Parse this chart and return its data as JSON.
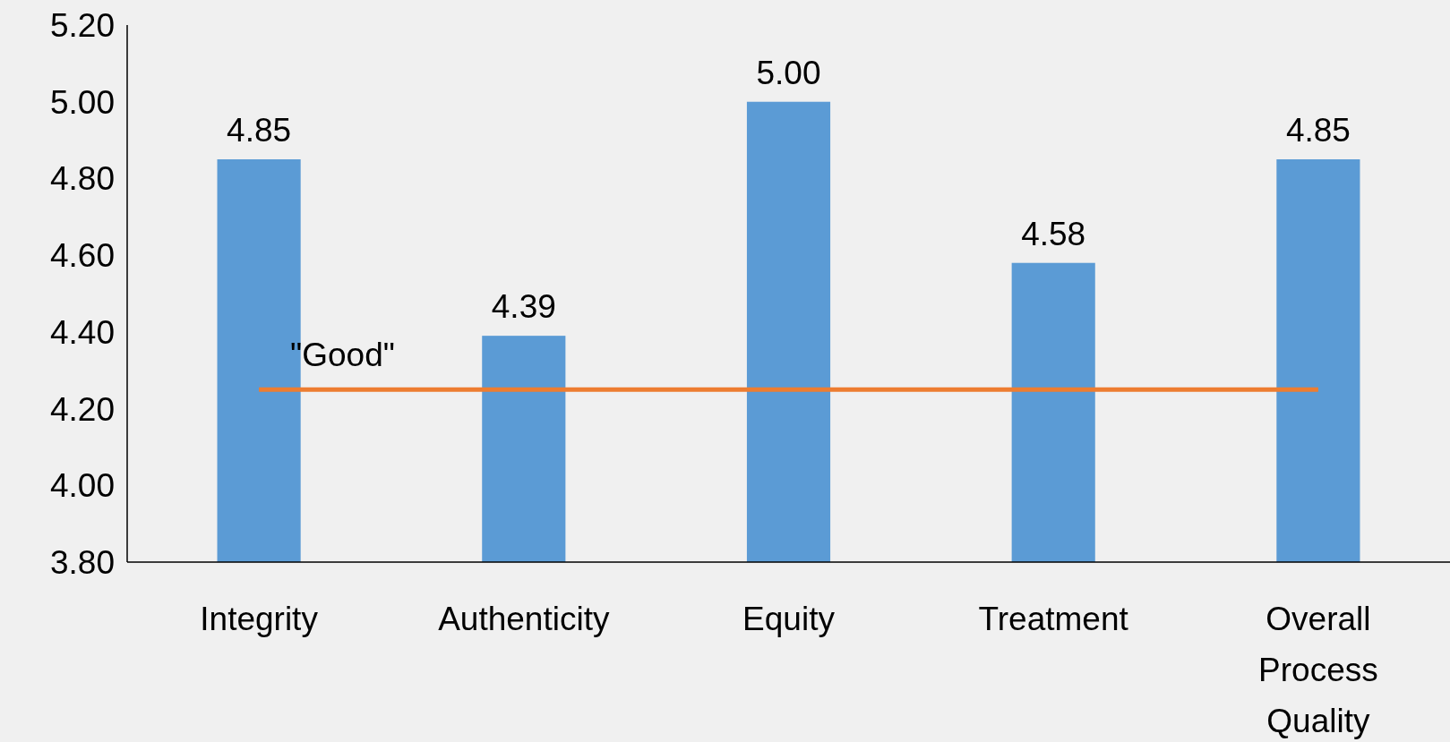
{
  "chart_data": {
    "type": "bar",
    "categories": [
      "Integrity",
      "Authenticity",
      "Equity",
      "Treatment",
      "Overall Process Quality"
    ],
    "values": [
      4.85,
      4.39,
      5.0,
      4.58,
      4.85
    ],
    "color": "#5b9bd5",
    "value_labels": [
      "4.85",
      "4.39",
      "5.00",
      "4.58",
      "4.85"
    ],
    "ylim": [
      3.8,
      5.2
    ],
    "yticks": [
      {
        "value": 3.8,
        "label": "3.80"
      },
      {
        "value": 4.0,
        "label": "4.00"
      },
      {
        "value": 4.2,
        "label": "4.20"
      },
      {
        "value": 4.4,
        "label": "4.40"
      },
      {
        "value": 4.6,
        "label": "4.60"
      },
      {
        "value": 4.8,
        "label": "4.80"
      },
      {
        "value": 5.0,
        "label": "5.00"
      },
      {
        "value": 5.2,
        "label": "5.20"
      }
    ],
    "grid": false,
    "ref_lines": [
      {
        "axis": "y",
        "value": 4.25,
        "label": "\"Good\"",
        "color": "#ed7d31"
      }
    ]
  }
}
